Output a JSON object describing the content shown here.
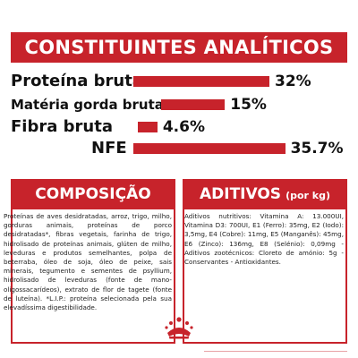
{
  "analytics": {
    "title": "CONSTITUINTES ANALÍTICOS",
    "rows": [
      {
        "label": "Proteína bruta",
        "value": "32%",
        "percent": 32
      },
      {
        "label": "Matéria gorda bruta",
        "value": "15%",
        "percent": 15
      },
      {
        "label": "Fibra bruta",
        "value": "4.6%",
        "percent": 4.6
      },
      {
        "label": "NFE",
        "value": "35.7%",
        "percent": 35.7
      }
    ]
  },
  "composition": {
    "title": "COMPOSIÇÃO",
    "text": "Proteínas de aves desidratadas, arroz, trigo, milho, gorduras animais, proteínas de porco desidratadas*, fibras vegetais, farinha de trigo, hidrolisado de proteínas animais, glúten de milho, leveduras e produtos semelhantes, polpa de beterraba, óleo de soja, óleo de peixe, sais minerais, tegumento e sementes de psyllium, hidrolisado de leveduras (fonte de mano-oligossacarídeos), extrato de flor de tagete (fonte de luteína). *L.I.P.: proteína selecionada pela sua elevadíssima digestibilidade."
  },
  "additives": {
    "title": "ADITIVOS",
    "subtitle": "(por kg)",
    "text": "Aditivos nutritivos: Vitamina A: 13.000UI, Vitamina D3: 700UI, E1 (Ferro): 35mg, E2 (Iodo): 3,5mg, E4 (Cobre): 11mg, E5 (Manganês): 45mg, E6 (Zinco): 136mg, E8 (Selénio): 0,09mg - Aditivos zootécnicos: Cloreto de amónio: 5g - Conservantes - Antioxidantes."
  },
  "colors": {
    "brand_red": "#c7232b"
  },
  "logo": {
    "icon": "royal-crown-icon"
  }
}
